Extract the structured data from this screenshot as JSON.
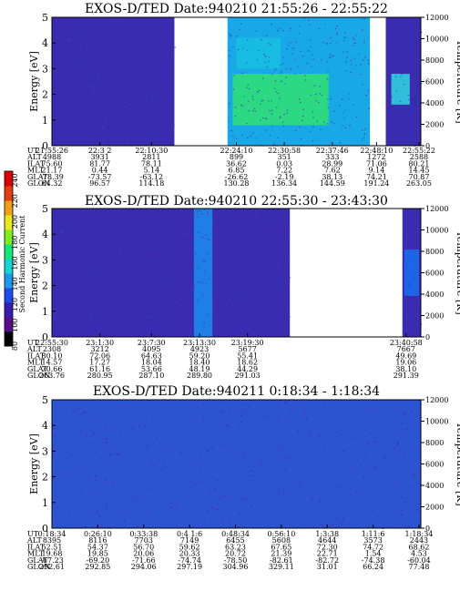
{
  "colorbar": {
    "label": "Second Harmonic Current",
    "ticks": [
      "240",
      "220",
      "200",
      "180",
      "160",
      "140",
      "120",
      "100",
      "80"
    ],
    "colors": [
      "#000000",
      "#5a0a8c",
      "#3a1ab4",
      "#1a4cf0",
      "#1a9af0",
      "#10d8d8",
      "#10e878",
      "#7cf01a",
      "#e8e81a",
      "#f0a010",
      "#e83c10",
      "#e00000"
    ]
  },
  "ephemeris_labels": [
    "UT",
    "ALT",
    "ILAT",
    "MLT",
    "GLAT",
    "GLON"
  ],
  "chart_data": [
    {
      "type": "heatmap",
      "title": "EXOS-D/TED   Date:940210   21:55:26 - 22:55:22",
      "ylabel": "Energy [eV]",
      "y2label": "Temperature [K]",
      "ylim": [
        0,
        5
      ],
      "y2lim": [
        0,
        12000
      ],
      "yticks": [
        "0",
        "1",
        "2",
        "3",
        "4",
        "5"
      ],
      "y2ticks": [
        "0",
        "2000",
        "4000",
        "6000",
        "8000",
        "10000",
        "12000"
      ],
      "data_gaps": [
        [
          0.332,
          0.476
        ],
        [
          0.862,
          0.905
        ]
      ],
      "segments": [
        {
          "x0": 0.0,
          "x1": 0.332,
          "base": "#3a2cb0",
          "accent": []
        },
        {
          "x0": 0.476,
          "x1": 0.862,
          "base": "#18a8e8",
          "accent": [
            {
              "from": 0.49,
              "to": 0.75,
              "y0": 0.8,
              "y1": 2.8,
              "color": "#30e070"
            },
            {
              "from": 0.5,
              "to": 0.62,
              "y0": 3.0,
              "y1": 4.2,
              "color": "#18c0e0"
            }
          ]
        },
        {
          "x0": 0.905,
          "x1": 1.0,
          "base": "#3a2cb0",
          "accent": [
            {
              "from": 0.92,
              "to": 0.97,
              "y0": 1.6,
              "y1": 2.8,
              "color": "#30d8e0"
            }
          ]
        }
      ],
      "ephemeris": {
        "UT": [
          "21:55:26",
          "22:3 2",
          "22:10:30",
          "22:24:10",
          "22:30:58",
          "22:37:46",
          "22:48:10",
          "22:55:22"
        ],
        "ALT": [
          "4988",
          "3931",
          "2811",
          "899",
          "351",
          "333",
          "1272",
          "2588"
        ],
        "ILAT": [
          "75.60",
          "81.77",
          "78.11",
          "36.62",
          "0.03",
          "28.99",
          "71.06",
          "80.21"
        ],
        "MLT": [
          "21.17",
          "0.44",
          "5.14",
          "6.85",
          "7.22",
          "7.62",
          "9.14",
          "14.45"
        ],
        "GLAT": [
          "-78.39",
          "-73.57",
          "-63.12",
          "-26.62",
          "-2.19",
          "38.13",
          "74.21",
          "70.87"
        ],
        "GLON": [
          "64.32",
          "96.57",
          "114.18",
          "130.28",
          "136.34",
          "144.59",
          "191.24",
          "263.05"
        ]
      }
    },
    {
      "type": "heatmap",
      "title": "EXOS-D/TED   Date:940210   22:55:30 - 23:43:30",
      "ylabel": "Energy [eV]",
      "y2label": "Temperature [K]",
      "ylim": [
        0,
        5
      ],
      "y2lim": [
        0,
        12000
      ],
      "yticks": [
        "0",
        "1",
        "2",
        "3",
        "4",
        "5"
      ],
      "y2ticks": [
        "0",
        "2000",
        "4000",
        "6000",
        "8000",
        "10000",
        "12000"
      ],
      "data_gaps": [
        [
          0.645,
          0.95
        ]
      ],
      "segments": [
        {
          "x0": 0.0,
          "x1": 0.645,
          "base": "#3a2cb0",
          "accent": [
            {
              "from": 0.385,
              "to": 0.435,
              "y0": 0.0,
              "y1": 5.0,
              "color": "#1a8ef0"
            }
          ]
        },
        {
          "x0": 0.95,
          "x1": 1.0,
          "base": "#3a2cb0",
          "accent": [
            {
              "from": 0.955,
              "to": 0.995,
              "y0": 1.6,
              "y1": 3.4,
              "color": "#1a70f0"
            }
          ]
        }
      ],
      "ephemeris": {
        "UT": [
          "22:55:30",
          "23:1:30",
          "23:7:30",
          "23:13:30",
          "23:19:30",
          "23:40:58"
        ],
        "ALT": [
          "2308",
          "3212",
          "4095",
          "4923",
          "5677",
          "7667"
        ],
        "ILAT": [
          "80.10",
          "72.06",
          "64.63",
          "59.20",
          "55.41",
          "49.69"
        ],
        "MLT": [
          "14.57",
          "17.27",
          "18.04",
          "18.40",
          "18.62",
          "19.06"
        ],
        "GLAT": [
          "70.66",
          "61.16",
          "53.66",
          "48.19",
          "44.29",
          "38.10"
        ],
        "GLON": [
          "263.76",
          "280.95",
          "287.10",
          "289.80",
          "291.03",
          "291.39"
        ]
      }
    },
    {
      "type": "heatmap",
      "title": "EXOS-D/TED   Date:940211   0:18:34 - 1:18:34",
      "ylabel": "Energy [eV]",
      "y2label": "Temperature [K]",
      "ylim": [
        0,
        5
      ],
      "y2lim": [
        0,
        12000
      ],
      "yticks": [
        "0",
        "1",
        "2",
        "3",
        "4",
        "5"
      ],
      "y2ticks": [
        "0",
        "2000",
        "4000",
        "6000",
        "8000",
        "10000",
        "12000"
      ],
      "data_gaps": [],
      "segments": [
        {
          "x0": 0.0,
          "x1": 1.0,
          "base": "#3a2cb0",
          "accent": [
            {
              "from": 0.0,
              "to": 1.0,
              "y0": 0.0,
              "y1": 5.0,
              "color": "#2a5ad8"
            }
          ]
        }
      ],
      "ephemeris": {
        "UT": [
          "0:18:34",
          "0:26:10",
          "0:33:38",
          "0:4 1:6",
          "0:48:34",
          "0:56:10",
          "1:3:38",
          "1:11:6",
          "1:18:34"
        ],
        "ALT": [
          "8395",
          "8116",
          "7703",
          "7149",
          "6455",
          "5608",
          "4644",
          "3573",
          "2443"
        ],
        "ILAT": [
          "52.51",
          "54.37",
          "56.70",
          "59.62",
          "63.23",
          "67.65",
          "72.30",
          "74.72",
          "68.62"
        ],
        "MLT": [
          "19.68",
          "19.85",
          "20.06",
          "20.33",
          "20.72",
          "21.39",
          "22.71",
          "1.54",
          "4.53"
        ],
        "GLAT": [
          "-67.23",
          "-69.20",
          "-71.66",
          "-74.74",
          "-78.50",
          "-82.61",
          "-82.72",
          "-74.38",
          "-60.04"
        ],
        "GLON": [
          "292.61",
          "292.85",
          "294.06",
          "297.19",
          "304.96",
          "329.11",
          "31.01",
          "66.24",
          "77.48"
        ]
      }
    }
  ]
}
